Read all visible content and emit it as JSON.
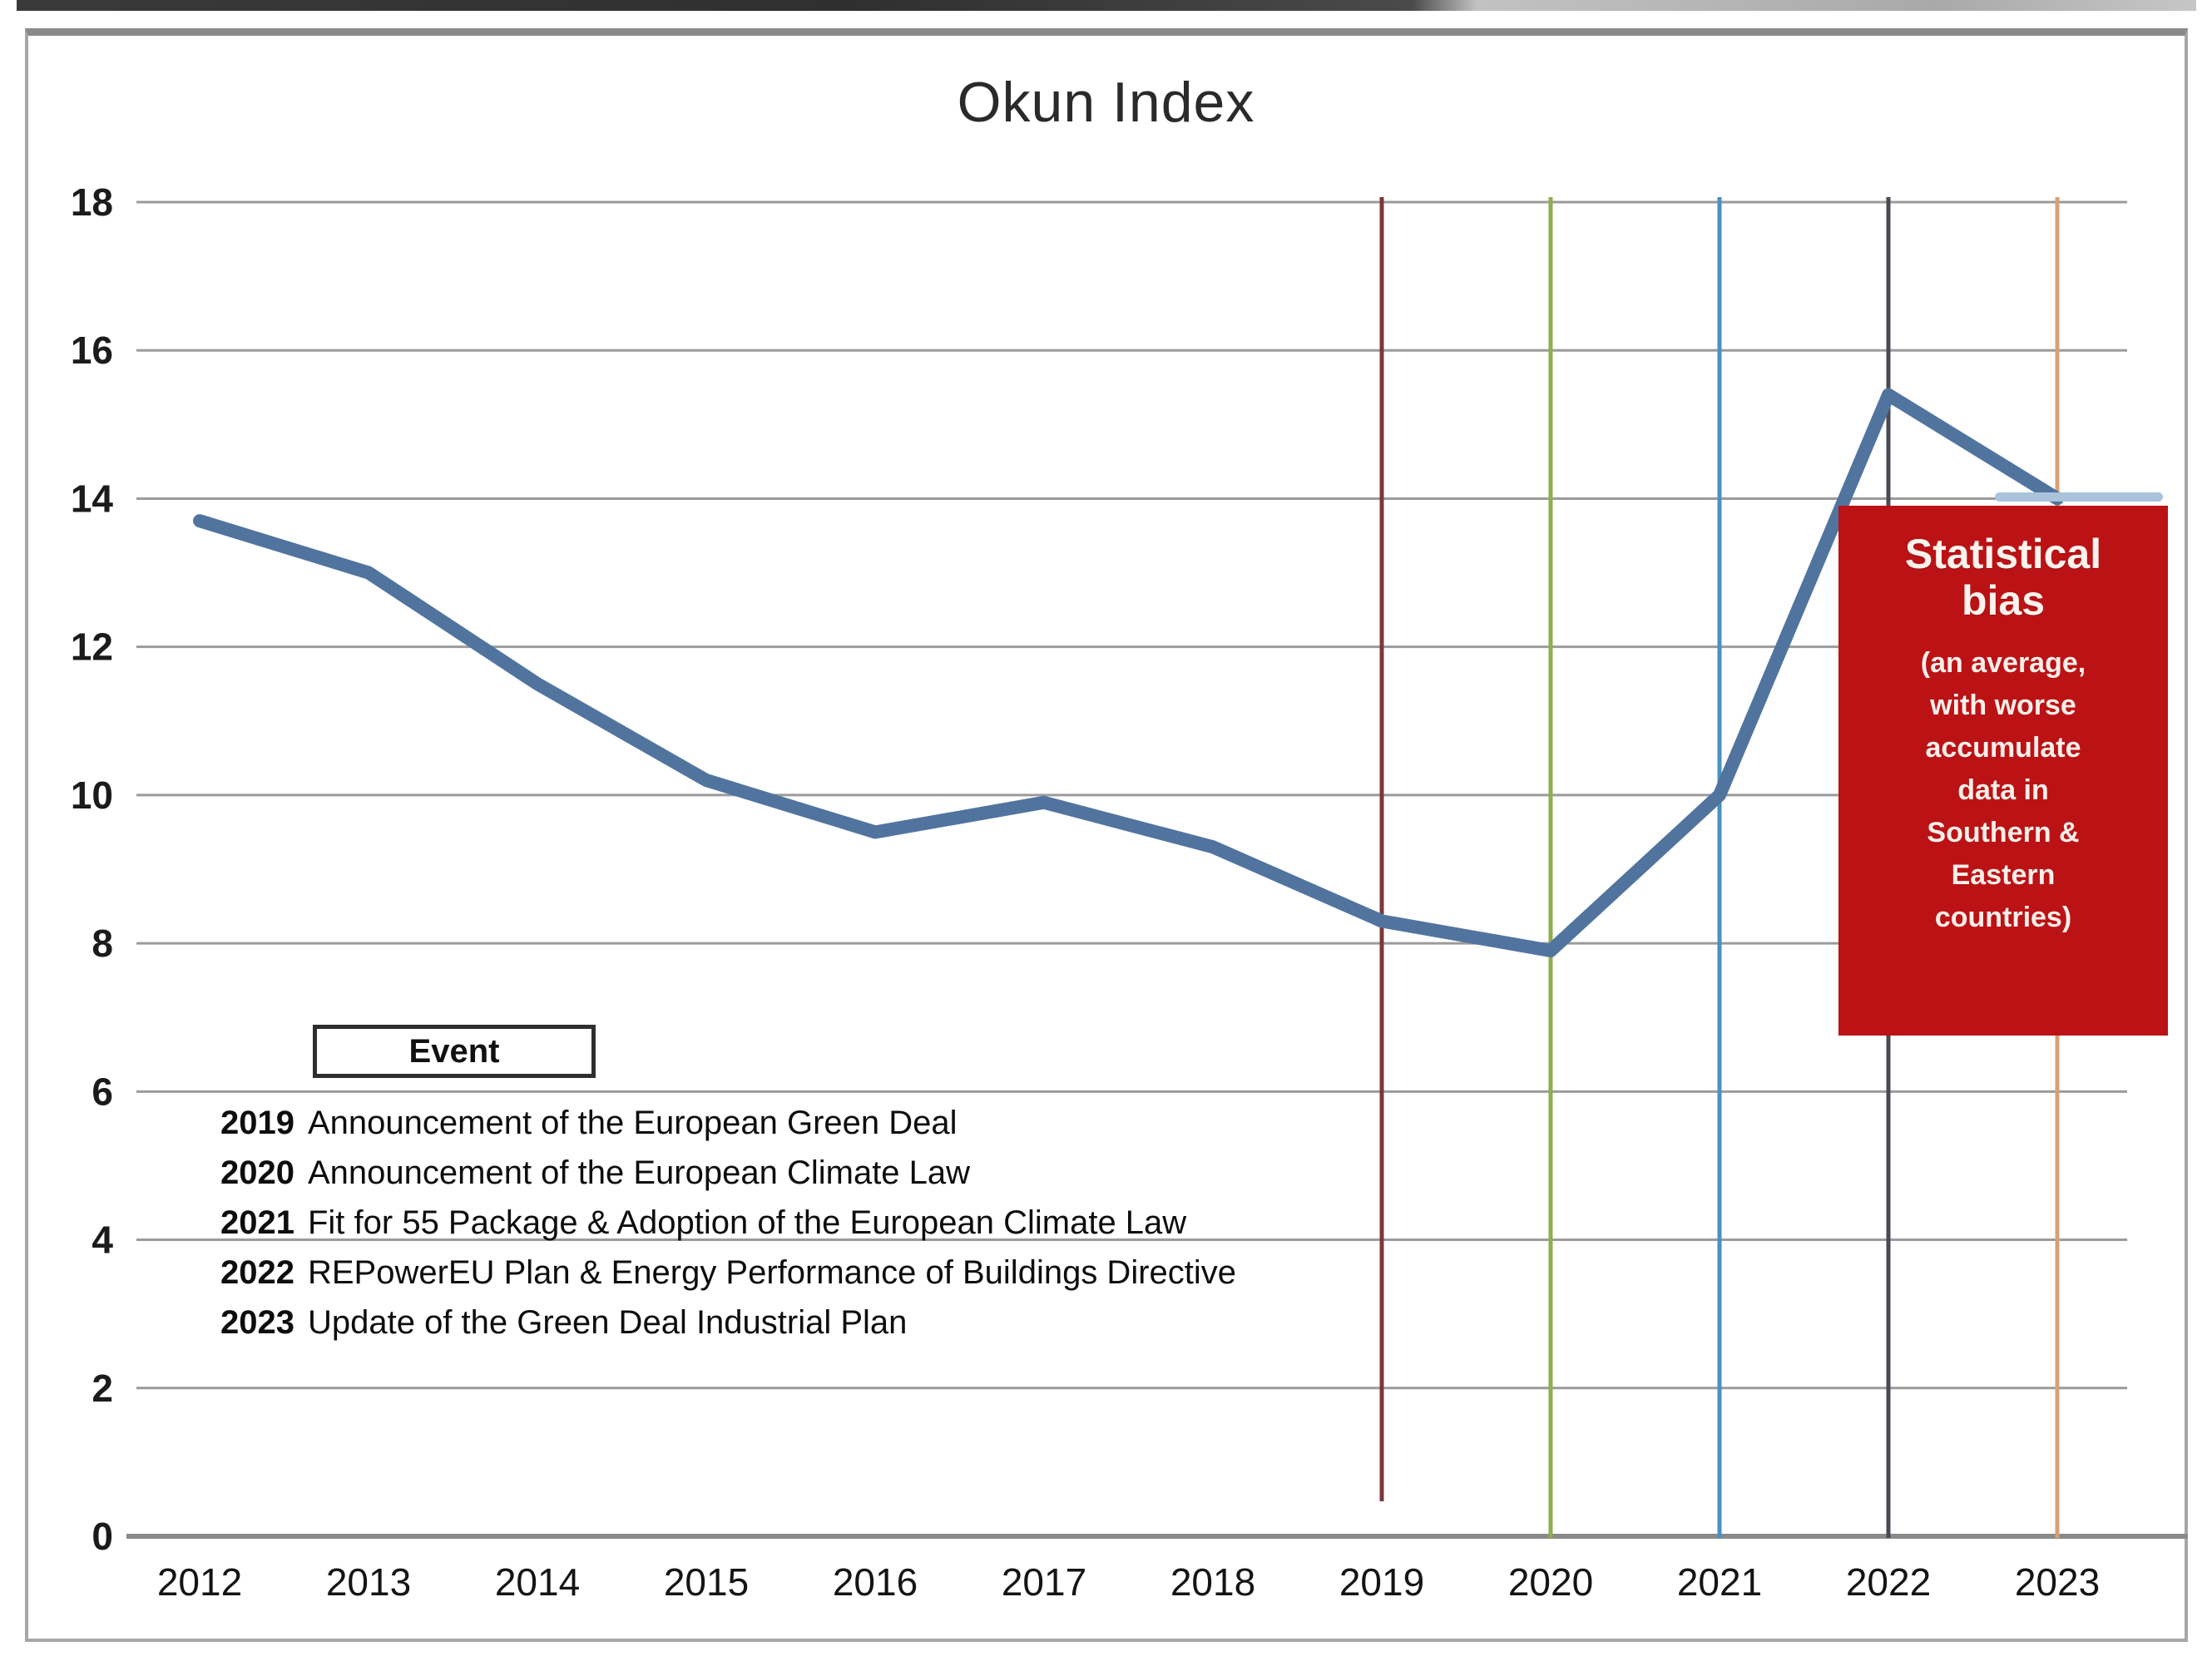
{
  "title": "Okun Index",
  "chart_data": {
    "type": "line",
    "title": "Okun Index",
    "x": [
      2012,
      2013,
      2014,
      2015,
      2016,
      2017,
      2018,
      2019,
      2020,
      2021,
      2022,
      2023
    ],
    "series": [
      {
        "name": "Okun Index",
        "values": [
          13.7,
          13.0,
          11.5,
          10.2,
          9.5,
          9.9,
          9.3,
          8.3,
          7.9,
          10.0,
          15.4,
          14.0
        ],
        "color": "#51749f",
        "end_highlight_color": "#a9c3da"
      }
    ],
    "xlabel": "",
    "ylabel": "",
    "ylim": [
      0,
      18
    ],
    "ytick_step": 2,
    "grid": "horizontal",
    "gridline_color": "#9b9b9b",
    "axis_color": "#8a8a8a",
    "event_lines": [
      {
        "year": 2019,
        "color": "#7a383c",
        "ends_above_axis": true
      },
      {
        "year": 2020,
        "color": "#8fae4d",
        "ends_above_axis": false
      },
      {
        "year": 2021,
        "color": "#4792c0",
        "ends_above_axis": false
      },
      {
        "year": 2022,
        "color": "#4a4a55",
        "ends_above_axis": false
      },
      {
        "year": 2023,
        "color": "#d6a176",
        "ends_above_axis": false
      }
    ]
  },
  "legend": {
    "header": "Event",
    "rows": [
      {
        "year": "2019",
        "text": "Announcement of the European Green Deal"
      },
      {
        "year": "2020",
        "text": "Announcement of the European Climate Law"
      },
      {
        "year": "2021",
        "text": "Fit for 55 Package & Adoption of the European Climate Law"
      },
      {
        "year": "2022",
        "text": "REPowerEU Plan & Energy Performance of Buildings Directive"
      },
      {
        "year": "2023",
        "text": "Update of the Green Deal Industrial Plan"
      }
    ]
  },
  "annotation": {
    "bg": "#bb1216",
    "title_line1": "Statistical",
    "title_line2": "bias",
    "body_lines": [
      "(an average,",
      "with worse",
      "accumulate",
      "data in",
      "Southern &",
      "Eastern",
      "countries)"
    ]
  }
}
